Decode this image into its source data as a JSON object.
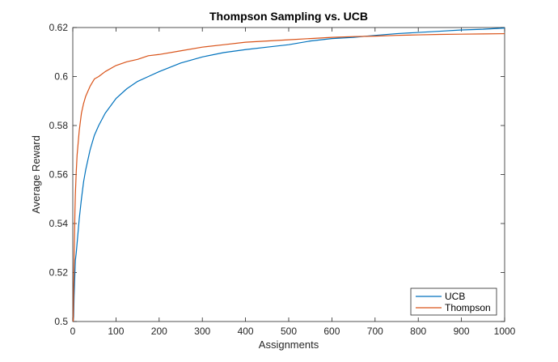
{
  "chart_data": {
    "type": "line",
    "title": "Thompson Sampling vs. UCB",
    "xlabel": "Assignments",
    "ylabel": "Average Reward",
    "xlim": [
      0,
      1000
    ],
    "ylim": [
      0.5,
      0.62
    ],
    "xticks": [
      0,
      100,
      200,
      300,
      400,
      500,
      600,
      700,
      800,
      900,
      1000
    ],
    "yticks": [
      0.5,
      0.52,
      0.54,
      0.56,
      0.58,
      0.6,
      0.62
    ],
    "xtick_labels": [
      "0",
      "100",
      "200",
      "300",
      "400",
      "500",
      "600",
      "700",
      "800",
      "900",
      "1000"
    ],
    "ytick_labels": [
      "0.5",
      "0.52",
      "0.54",
      "0.56",
      "0.58",
      "0.6",
      "0.62"
    ],
    "grid": false,
    "legend_position": "bottom-right",
    "series": [
      {
        "name": "UCB",
        "color": "#0072BD",
        "x": [
          1,
          2,
          3,
          4,
          5,
          6,
          8,
          10,
          15,
          20,
          25,
          30,
          40,
          50,
          60,
          75,
          100,
          125,
          150,
          175,
          200,
          250,
          300,
          350,
          400,
          450,
          500,
          550,
          600,
          650,
          700,
          750,
          800,
          850,
          900,
          950,
          1000
        ],
        "y": [
          0.5,
          0.502,
          0.51,
          0.515,
          0.52,
          0.525,
          0.528,
          0.532,
          0.542,
          0.55,
          0.557,
          0.562,
          0.57,
          0.576,
          0.58,
          0.585,
          0.591,
          0.595,
          0.598,
          0.6,
          0.602,
          0.6055,
          0.608,
          0.6098,
          0.611,
          0.612,
          0.613,
          0.6145,
          0.6155,
          0.616,
          0.6168,
          0.6175,
          0.618,
          0.6185,
          0.619,
          0.6193,
          0.6198
        ]
      },
      {
        "name": "Thompson",
        "color": "#D95319",
        "x": [
          1,
          2,
          3,
          4,
          5,
          6,
          8,
          10,
          15,
          20,
          25,
          30,
          40,
          50,
          60,
          75,
          100,
          125,
          150,
          175,
          200,
          250,
          300,
          350,
          400,
          450,
          500,
          550,
          600,
          650,
          700,
          750,
          800,
          850,
          900,
          950,
          1000
        ],
        "y": [
          0.5,
          0.515,
          0.525,
          0.535,
          0.545,
          0.552,
          0.561,
          0.568,
          0.578,
          0.585,
          0.589,
          0.592,
          0.596,
          0.599,
          0.6,
          0.602,
          0.6045,
          0.606,
          0.607,
          0.6085,
          0.609,
          0.6105,
          0.612,
          0.613,
          0.614,
          0.6145,
          0.615,
          0.6155,
          0.616,
          0.6163,
          0.6165,
          0.6168,
          0.617,
          0.6172,
          0.6173,
          0.6174,
          0.6175
        ]
      }
    ]
  }
}
